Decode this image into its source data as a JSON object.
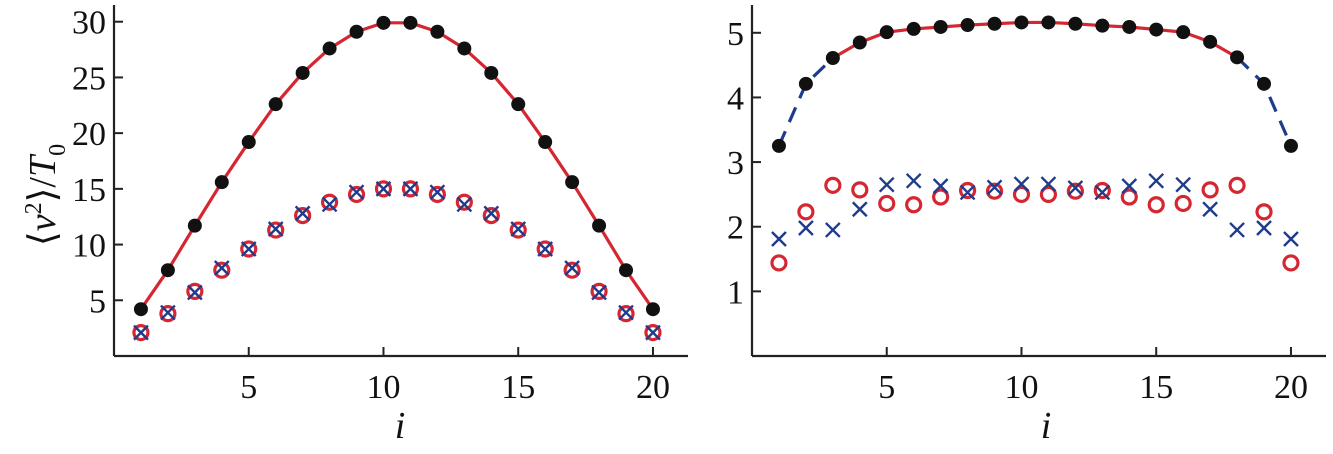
{
  "colors": {
    "solid_line": "#d62631",
    "dashed_line": "#1f3b8c",
    "dots": "#111111",
    "circles": "#d62631",
    "crosses": "#1f3b8c"
  },
  "chart_data": [
    {
      "type": "scatter",
      "title": "",
      "xlabel": "i",
      "ylabel": "⟨v²⟩/T₀",
      "ylabel_parts": {
        "prefix": "⟨",
        "v": "v",
        "sup": "2",
        "mid": "⟩/",
        "t": "T",
        "sub": "0"
      },
      "xlim": [
        0,
        21.3
      ],
      "ylim": [
        0,
        31.5
      ],
      "xticks": [
        5,
        10,
        15,
        20
      ],
      "yticks": [
        5,
        10,
        15,
        20,
        25,
        30
      ],
      "grid": false,
      "legend": "none",
      "series": [
        {
          "marker": "dot",
          "x": [
            1,
            2,
            3,
            4,
            5,
            6,
            7,
            8,
            9,
            10,
            11,
            12,
            13,
            14,
            15,
            16,
            17,
            18,
            19,
            20
          ],
          "values": [
            4.2,
            7.7,
            11.7,
            15.6,
            19.2,
            22.6,
            25.4,
            27.6,
            29.1,
            29.9,
            29.9,
            29.1,
            27.6,
            25.4,
            22.6,
            19.2,
            15.6,
            11.7,
            7.7,
            4.2
          ]
        },
        {
          "marker": "solid-line",
          "x": [
            1,
            2,
            3,
            4,
            5,
            6,
            7,
            8,
            9,
            10,
            11,
            12,
            13,
            14,
            15,
            16,
            17,
            18,
            19,
            20
          ],
          "values": [
            4.2,
            7.7,
            11.7,
            15.6,
            19.2,
            22.6,
            25.4,
            27.6,
            29.1,
            29.9,
            29.9,
            29.1,
            27.6,
            25.4,
            22.6,
            19.2,
            15.6,
            11.7,
            7.7,
            4.2
          ]
        },
        {
          "marker": "circle",
          "x": [
            1,
            2,
            3,
            4,
            5,
            6,
            7,
            8,
            9,
            10,
            11,
            12,
            13,
            14,
            15,
            16,
            17,
            18,
            19,
            20
          ],
          "values": [
            2.1,
            3.8,
            5.8,
            7.7,
            9.6,
            11.3,
            12.6,
            13.8,
            14.5,
            15.0,
            15.0,
            14.5,
            13.8,
            12.6,
            11.3,
            9.6,
            7.7,
            5.8,
            3.8,
            2.1
          ]
        },
        {
          "marker": "cross",
          "x": [
            1,
            2,
            3,
            4,
            5,
            6,
            7,
            8,
            9,
            10,
            11,
            12,
            13,
            14,
            15,
            16,
            17,
            18,
            19,
            20
          ],
          "values": [
            2.1,
            3.9,
            5.7,
            7.9,
            9.6,
            11.4,
            12.8,
            13.6,
            14.7,
            15.0,
            15.0,
            14.7,
            13.6,
            12.8,
            11.4,
            9.6,
            7.9,
            5.7,
            3.9,
            2.1
          ]
        }
      ]
    },
    {
      "type": "scatter",
      "title": "",
      "xlabel": "i",
      "ylabel": "",
      "xlim": [
        0,
        21.3
      ],
      "ylim": [
        0,
        5.43
      ],
      "xticks": [
        5,
        10,
        15,
        20
      ],
      "yticks": [
        1,
        2,
        3,
        4,
        5
      ],
      "grid": false,
      "legend": "none",
      "series": [
        {
          "marker": "dot",
          "x": [
            1,
            2,
            3,
            4,
            5,
            6,
            7,
            8,
            9,
            10,
            11,
            12,
            13,
            14,
            15,
            16,
            17,
            18,
            19,
            20
          ],
          "values": [
            3.25,
            4.21,
            4.61,
            4.85,
            5.01,
            5.06,
            5.09,
            5.12,
            5.14,
            5.16,
            5.16,
            5.14,
            5.11,
            5.09,
            5.05,
            5.01,
            4.86,
            4.62,
            4.21,
            3.25
          ]
        },
        {
          "marker": "dashed-line",
          "x": [
            1,
            2,
            3
          ],
          "values": [
            3.25,
            4.21,
            4.61
          ]
        },
        {
          "marker": "solid-line",
          "x": [
            3,
            4,
            5,
            6,
            7,
            8,
            9,
            10,
            11,
            12,
            13,
            14,
            15,
            16,
            17,
            18
          ],
          "values": [
            4.61,
            4.85,
            5.01,
            5.06,
            5.09,
            5.12,
            5.14,
            5.16,
            5.16,
            5.14,
            5.11,
            5.09,
            5.05,
            5.01,
            4.86,
            4.62
          ]
        },
        {
          "marker": "dashed-line",
          "x": [
            18,
            19,
            20
          ],
          "values": [
            4.62,
            4.21,
            3.25
          ]
        },
        {
          "marker": "circle",
          "x": [
            1,
            2,
            3,
            4,
            5,
            6,
            7,
            8,
            9,
            10,
            11,
            12,
            13,
            14,
            15,
            16,
            17,
            18,
            19,
            20
          ],
          "values": [
            1.44,
            2.23,
            2.64,
            2.57,
            2.36,
            2.34,
            2.46,
            2.56,
            2.55,
            2.5,
            2.5,
            2.55,
            2.56,
            2.46,
            2.34,
            2.36,
            2.57,
            2.64,
            2.23,
            1.44
          ]
        },
        {
          "marker": "cross",
          "x": [
            1,
            2,
            3,
            4,
            5,
            6,
            7,
            8,
            9,
            10,
            11,
            12,
            13,
            14,
            15,
            16,
            17,
            18,
            19,
            20
          ],
          "values": [
            1.81,
            1.98,
            1.95,
            2.27,
            2.65,
            2.71,
            2.63,
            2.53,
            2.61,
            2.66,
            2.66,
            2.6,
            2.53,
            2.63,
            2.71,
            2.65,
            2.27,
            1.95,
            1.98,
            1.81
          ]
        }
      ]
    }
  ]
}
